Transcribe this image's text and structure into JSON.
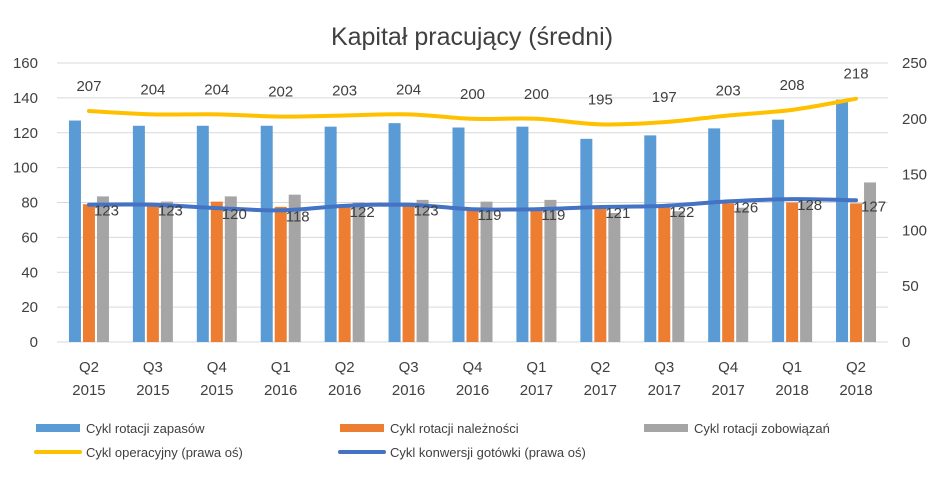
{
  "chart_data": {
    "type": "bar",
    "title": "Kapitał pracujący (średni)",
    "categories": [
      [
        "Q2",
        "2015"
      ],
      [
        "Q3",
        "2015"
      ],
      [
        "Q4",
        "2015"
      ],
      [
        "Q1",
        "2016"
      ],
      [
        "Q2",
        "2016"
      ],
      [
        "Q3",
        "2016"
      ],
      [
        "Q4",
        "2016"
      ],
      [
        "Q1",
        "2017"
      ],
      [
        "Q2",
        "2017"
      ],
      [
        "Q3",
        "2017"
      ],
      [
        "Q4",
        "2017"
      ],
      [
        "Q1",
        "2018"
      ],
      [
        "Q2",
        "2018"
      ]
    ],
    "left_axis": {
      "ylim": [
        0,
        160
      ],
      "ticks": [
        "0",
        "20",
        "40",
        "60",
        "80",
        "100",
        "120",
        "140",
        "160"
      ]
    },
    "right_axis": {
      "ylim": [
        0,
        250
      ],
      "ticks": [
        "0",
        "50",
        "100",
        "150",
        "200",
        "250"
      ]
    },
    "gridlines": true,
    "legend_position": "bottom",
    "series": [
      {
        "name": "Cykl rotacji zapasów",
        "kind": "bar",
        "axis": "left",
        "color": "#5B9BD5",
        "values": [
          127,
          124,
          124,
          124,
          123.5,
          125.5,
          123,
          123.5,
          116.5,
          118.5,
          122.5,
          127.5,
          139
        ]
      },
      {
        "name": "Cykl rotacji należności",
        "kind": "bar",
        "axis": "left",
        "color": "#ED7D31",
        "values": [
          79,
          79,
          80.5,
          77.5,
          78,
          79.5,
          76.5,
          76,
          77,
          77.5,
          79.5,
          80,
          79.5
        ]
      },
      {
        "name": "Cykl rotacji zobowiązań",
        "kind": "bar",
        "axis": "left",
        "color": "#A5A5A5",
        "values": [
          83.5,
          80.5,
          83.5,
          84.5,
          80,
          81.5,
          80.5,
          81.5,
          74,
          75,
          77,
          80.5,
          91.5
        ]
      },
      {
        "name": "Cykl operacyjny (prawa oś)",
        "kind": "line",
        "axis": "right",
        "color": "#FFC000",
        "values": [
          207,
          204,
          204,
          202,
          203,
          204,
          200,
          200,
          195,
          197,
          203,
          208,
          218
        ],
        "labels": [
          "207",
          "204",
          "204",
          "202",
          "203",
          "204",
          "200",
          "200",
          "195",
          "197",
          "203",
          "208",
          "218"
        ]
      },
      {
        "name": "Cykl konwersji gotówki (prawa oś)",
        "kind": "line",
        "axis": "right",
        "color": "#4472C4",
        "values": [
          123,
          123,
          120,
          118,
          122,
          123,
          119,
          119,
          121,
          122,
          126,
          128,
          127
        ],
        "labels": [
          "123",
          "123",
          "120",
          "118",
          "122",
          "123",
          "119",
          "119",
          "121",
          "122",
          "126",
          "128",
          "127"
        ]
      }
    ]
  }
}
